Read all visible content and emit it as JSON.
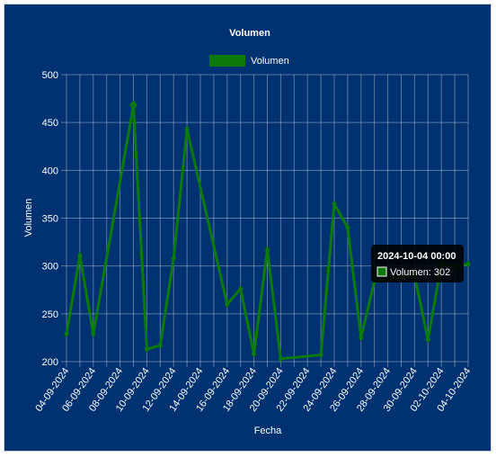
{
  "chart_data": {
    "type": "line",
    "title": "Volumen",
    "xlabel": "Fecha",
    "ylabel": "Volumen",
    "ylim": [
      200,
      500
    ],
    "yticks": [
      200,
      250,
      300,
      350,
      400,
      450,
      500
    ],
    "xlim": [
      "2024-09-04",
      "2024-10-04"
    ],
    "xtick_labels": [
      "04-09-2024",
      "06-09-2024",
      "08-09-2024",
      "10-09-2024",
      "12-09-2024",
      "14-09-2024",
      "16-09-2024",
      "18-09-2024",
      "20-09-2024",
      "22-09-2024",
      "24-09-2024",
      "26-09-2024",
      "28-09-2024",
      "30-09-2024",
      "02-10-2024",
      "04-10-2024"
    ],
    "grid": true,
    "legend": "top",
    "series": [
      {
        "name": "Volumen",
        "color": "#0b7a0b",
        "points": [
          {
            "x": "2024-09-04",
            "y": 229
          },
          {
            "x": "2024-09-05",
            "y": 311
          },
          {
            "x": "2024-09-06",
            "y": 229
          },
          {
            "x": "2024-09-09",
            "y": 468
          },
          {
            "x": "2024-09-10",
            "y": 213
          },
          {
            "x": "2024-09-11",
            "y": 217
          },
          {
            "x": "2024-09-12",
            "y": 308
          },
          {
            "x": "2024-09-13",
            "y": 443
          },
          {
            "x": "2024-09-16",
            "y": 260
          },
          {
            "x": "2024-09-17",
            "y": 276
          },
          {
            "x": "2024-09-18",
            "y": 208
          },
          {
            "x": "2024-09-19",
            "y": 317
          },
          {
            "x": "2024-09-20",
            "y": 203
          },
          {
            "x": "2024-09-23",
            "y": 207
          },
          {
            "x": "2024-09-24",
            "y": 365
          },
          {
            "x": "2024-09-25",
            "y": 340
          },
          {
            "x": "2024-09-26",
            "y": 225
          },
          {
            "x": "2024-09-27",
            "y": 284
          },
          {
            "x": "2024-09-30",
            "y": 290
          },
          {
            "x": "2024-10-01",
            "y": 223
          },
          {
            "x": "2024-10-02",
            "y": 302
          },
          {
            "x": "2024-10-03",
            "y": 300
          },
          {
            "x": "2024-10-04",
            "y": 302
          }
        ]
      }
    ],
    "tooltip": {
      "title": "2024-10-04 00:00",
      "label": "Volumen: 302"
    }
  }
}
